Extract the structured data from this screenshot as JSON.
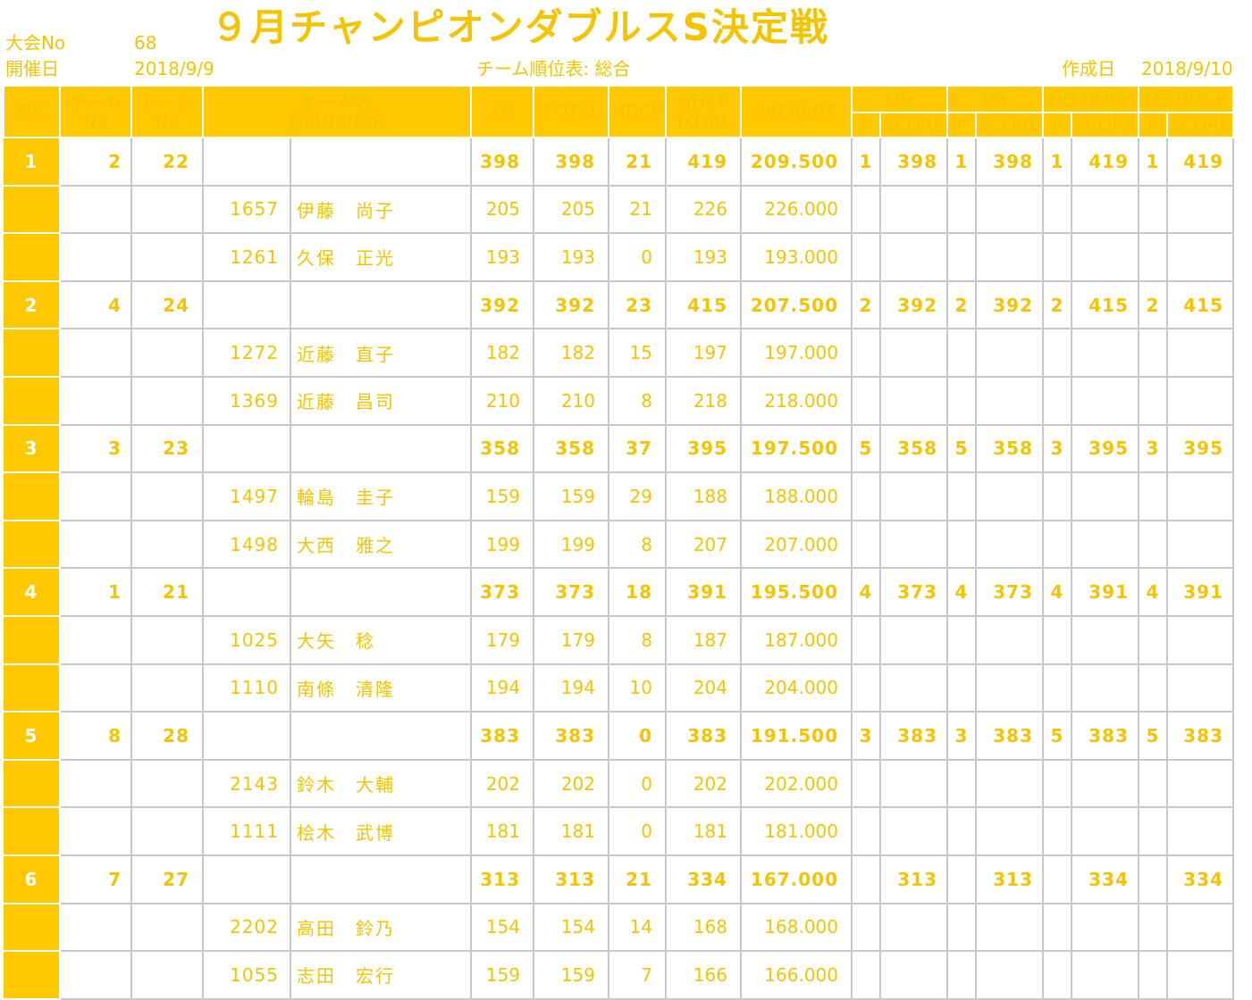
{
  "header": {
    "meet_no_label": "大会No",
    "meet_no": "68",
    "date_label": "開催日",
    "date": "2018/9/9",
    "title": "９月チャンピオンダブルスS決定戦",
    "sheet_label": "チーム順位表: 総合",
    "created_label": "作成日",
    "created_date": "2018/9/10"
  },
  "columns": {
    "rank": "順位",
    "team_no_1": "チーム",
    "team_no_2": "No",
    "lane_no_1": "レーン",
    "lane_no_2": "No",
    "team_name_1": "チーム名",
    "team_name_2": "会員No/氏名",
    "g1": "1G",
    "total": "TOTAL",
    "hdcp": "HDCP",
    "hdcp_total_1": "HDCP",
    "hdcp_total_2": "TOTAL",
    "average": "AVERAGE",
    "hg": "HG",
    "hs": "HS",
    "hg_hdcp": "HG HDCP",
    "hs_hdcp": "HS HDCP",
    "p": "P",
    "score": "SCORE"
  },
  "teams": [
    {
      "rank": "1",
      "team_no": "2",
      "lane": "22",
      "g1": "398",
      "total": "398",
      "hdcp": "21",
      "hdcp_total": "419",
      "average": "209.500",
      "hg_p": "1",
      "hg_score": "398",
      "hs_p": "1",
      "hs_score": "398",
      "hgh_p": "1",
      "hgh_score": "419",
      "hsh_p": "1",
      "hsh_score": "419",
      "members": [
        {
          "no": "1657",
          "name": "伊藤　尚子",
          "g1": "205",
          "total": "205",
          "hdcp": "21",
          "hdcp_total": "226",
          "average": "226.000"
        },
        {
          "no": "1261",
          "name": "久保　正光",
          "g1": "193",
          "total": "193",
          "hdcp": "0",
          "hdcp_total": "193",
          "average": "193.000"
        }
      ]
    },
    {
      "rank": "2",
      "team_no": "4",
      "lane": "24",
      "g1": "392",
      "total": "392",
      "hdcp": "23",
      "hdcp_total": "415",
      "average": "207.500",
      "hg_p": "2",
      "hg_score": "392",
      "hs_p": "2",
      "hs_score": "392",
      "hgh_p": "2",
      "hgh_score": "415",
      "hsh_p": "2",
      "hsh_score": "415",
      "members": [
        {
          "no": "1272",
          "name": "近藤　直子",
          "g1": "182",
          "total": "182",
          "hdcp": "15",
          "hdcp_total": "197",
          "average": "197.000"
        },
        {
          "no": "1369",
          "name": "近藤　昌司",
          "g1": "210",
          "total": "210",
          "hdcp": "8",
          "hdcp_total": "218",
          "average": "218.000"
        }
      ]
    },
    {
      "rank": "3",
      "team_no": "3",
      "lane": "23",
      "g1": "358",
      "total": "358",
      "hdcp": "37",
      "hdcp_total": "395",
      "average": "197.500",
      "hg_p": "5",
      "hg_score": "358",
      "hs_p": "5",
      "hs_score": "358",
      "hgh_p": "3",
      "hgh_score": "395",
      "hsh_p": "3",
      "hsh_score": "395",
      "members": [
        {
          "no": "1497",
          "name": "輪島　圭子",
          "g1": "159",
          "total": "159",
          "hdcp": "29",
          "hdcp_total": "188",
          "average": "188.000"
        },
        {
          "no": "1498",
          "name": "大西　雅之",
          "g1": "199",
          "total": "199",
          "hdcp": "8",
          "hdcp_total": "207",
          "average": "207.000"
        }
      ]
    },
    {
      "rank": "4",
      "team_no": "1",
      "lane": "21",
      "g1": "373",
      "total": "373",
      "hdcp": "18",
      "hdcp_total": "391",
      "average": "195.500",
      "hg_p": "4",
      "hg_score": "373",
      "hs_p": "4",
      "hs_score": "373",
      "hgh_p": "4",
      "hgh_score": "391",
      "hsh_p": "4",
      "hsh_score": "391",
      "members": [
        {
          "no": "1025",
          "name": "大矢　稔",
          "g1": "179",
          "total": "179",
          "hdcp": "8",
          "hdcp_total": "187",
          "average": "187.000"
        },
        {
          "no": "1110",
          "name": "南條　清隆",
          "g1": "194",
          "total": "194",
          "hdcp": "10",
          "hdcp_total": "204",
          "average": "204.000"
        }
      ]
    },
    {
      "rank": "5",
      "team_no": "8",
      "lane": "28",
      "g1": "383",
      "total": "383",
      "hdcp": "0",
      "hdcp_total": "383",
      "average": "191.500",
      "hg_p": "3",
      "hg_score": "383",
      "hs_p": "3",
      "hs_score": "383",
      "hgh_p": "5",
      "hgh_score": "383",
      "hsh_p": "5",
      "hsh_score": "383",
      "members": [
        {
          "no": "2143",
          "name": "鈴木　大輔",
          "g1": "202",
          "total": "202",
          "hdcp": "0",
          "hdcp_total": "202",
          "average": "202.000"
        },
        {
          "no": "1111",
          "name": "桧木　武博",
          "g1": "181",
          "total": "181",
          "hdcp": "0",
          "hdcp_total": "181",
          "average": "181.000"
        }
      ]
    },
    {
      "rank": "6",
      "team_no": "7",
      "lane": "27",
      "g1": "313",
      "total": "313",
      "hdcp": "21",
      "hdcp_total": "334",
      "average": "167.000",
      "hg_p": "",
      "hg_score": "313",
      "hs_p": "",
      "hs_score": "313",
      "hgh_p": "",
      "hgh_score": "334",
      "hsh_p": "",
      "hsh_score": "334",
      "members": [
        {
          "no": "2202",
          "name": "高田　鈴乃",
          "g1": "154",
          "total": "154",
          "hdcp": "14",
          "hdcp_total": "168",
          "average": "168.000"
        },
        {
          "no": "1055",
          "name": "志田　宏行",
          "g1": "159",
          "total": "159",
          "hdcp": "7",
          "hdcp_total": "166",
          "average": "166.000"
        }
      ]
    }
  ]
}
